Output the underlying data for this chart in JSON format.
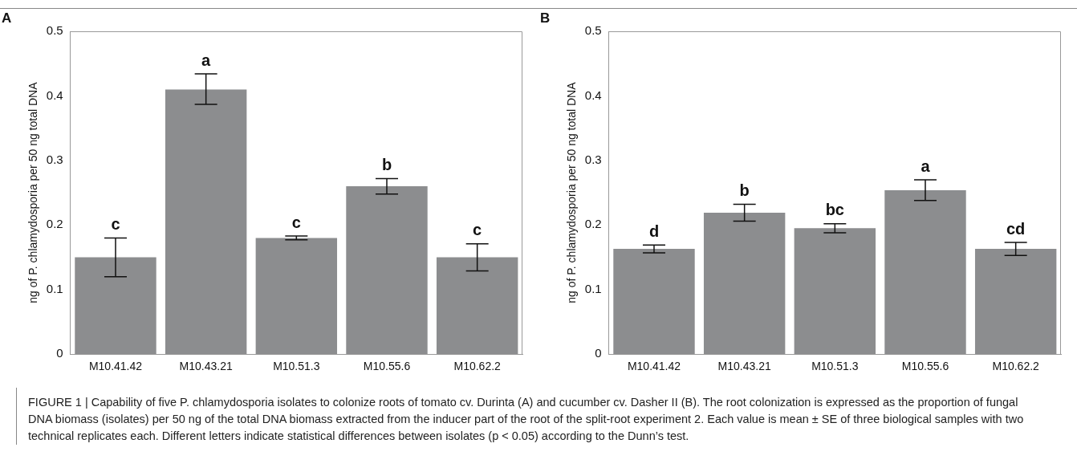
{
  "chart_data": [
    {
      "type": "bar",
      "title": "A",
      "ylabel": "ng of P. chlamydosporia per 50 ng total DNA",
      "categories": [
        "M10.41.42",
        "M10.43.21",
        "M10.51.3",
        "M10.55.6",
        "M10.62.2"
      ],
      "values": [
        0.15,
        0.41,
        0.18,
        0.26,
        0.15
      ],
      "errors": [
        [
          0.12,
          0.18
        ],
        [
          0.387,
          0.434
        ],
        [
          0.177,
          0.183
        ],
        [
          0.248,
          0.272
        ],
        [
          0.129,
          0.171
        ]
      ],
      "color": "#8c8d8f",
      "ylim": [
        0,
        0.5
      ],
      "yticks": [
        0,
        0.1,
        0.2,
        0.3,
        0.4,
        0.5
      ],
      "grid": false,
      "legend": false,
      "annotations": [
        {
          "text": "c",
          "x": "M10.41.42",
          "y": 0.18
        },
        {
          "text": "a",
          "x": "M10.43.21",
          "y": 0.434
        },
        {
          "text": "c",
          "x": "M10.51.3",
          "y": 0.183
        },
        {
          "text": "b",
          "x": "M10.55.6",
          "y": 0.272
        },
        {
          "text": "c",
          "x": "M10.62.2",
          "y": 0.171
        },
        "FIGURE 1 | Capability of five P. chlamydosporia isolates to colonize roots of tomato cv. Durinta (A) and cucumber cv. Dasher II (B). The root colonization is expressed as the proportion of fungal DNA biomass (isolates) per 50 ng of the total DNA biomass extracted from the inducer part of the root of the split-root experiment 2. Each value is mean ± SE of three biological samples with two technical replicates each. Different letters indicate statistical differences between isolates (p < 0.05) according to the Dunn’s test."
      ]
    },
    {
      "type": "bar",
      "title": "B",
      "ylabel": "ng of P. chlamydosporia per 50 ng total DNA",
      "categories": [
        "M10.41.42",
        "M10.43.21",
        "M10.51.3",
        "M10.55.6",
        "M10.62.2"
      ],
      "values": [
        0.163,
        0.219,
        0.195,
        0.254,
        0.163
      ],
      "errors": [
        [
          0.157,
          0.169
        ],
        [
          0.206,
          0.232
        ],
        [
          0.188,
          0.202
        ],
        [
          0.238,
          0.27
        ],
        [
          0.153,
          0.173
        ]
      ],
      "color": "#8c8d8f",
      "ylim": [
        0,
        0.5
      ],
      "yticks": [
        0,
        0.1,
        0.2,
        0.3,
        0.4,
        0.5
      ],
      "grid": false,
      "legend": false,
      "annotations": [
        {
          "text": "d",
          "x": "M10.41.42",
          "y": 0.169
        },
        {
          "text": "b",
          "x": "M10.43.21",
          "y": 0.232
        },
        {
          "text": "bc",
          "x": "M10.51.3",
          "y": 0.202
        },
        {
          "text": "a",
          "x": "M10.55.6",
          "y": 0.27
        },
        {
          "text": "cd",
          "x": "M10.62.2",
          "y": 0.173
        }
      ]
    }
  ]
}
